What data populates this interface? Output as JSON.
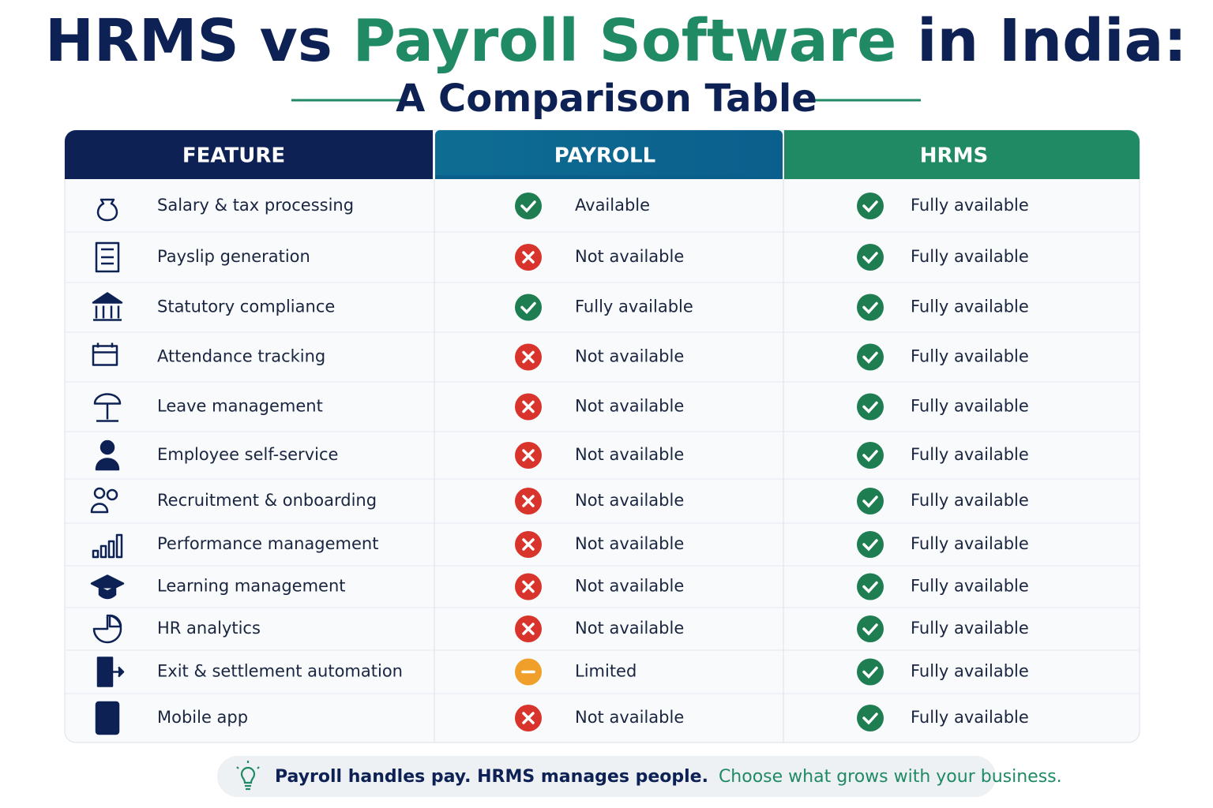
{
  "header": {
    "title": [
      "HRMS vs",
      "Payroll Software",
      "in India:"
    ],
    "subtitle": "A Comparison Table"
  },
  "table": {
    "columns": [
      "FEATURE",
      "PAYROLL",
      "HRMS"
    ],
    "rows": [
      [
        "Salary & tax processing",
        "Available",
        "Fully available"
      ],
      [
        "Payslip generation",
        "Not available",
        "Fully available"
      ],
      [
        "Statutory compliance",
        "Fully available",
        "Fully available"
      ],
      [
        "Attendance tracking",
        "Not available",
        "Fully available"
      ],
      [
        "Leave management",
        "Not available",
        "Fully available"
      ],
      [
        "Employee self-service",
        "Not available",
        "Fully available"
      ],
      [
        "Recruitment & onboarding",
        "Not available",
        "Fully available"
      ],
      [
        "Performance management",
        "Not available",
        "Fully available"
      ],
      [
        "Learning management",
        "Not available",
        "Fully available"
      ],
      [
        "HR analytics",
        "Not available",
        "Fully available"
      ],
      [
        "Exit & settlement automation",
        "Limited",
        "Fully available"
      ],
      [
        "Mobile app",
        "Not available",
        "Fully available"
      ]
    ]
  },
  "footer": {
    "emphasis": "Payroll handles pay. HRMS manages people.",
    "tagline": "Choose what grows with your business."
  }
}
